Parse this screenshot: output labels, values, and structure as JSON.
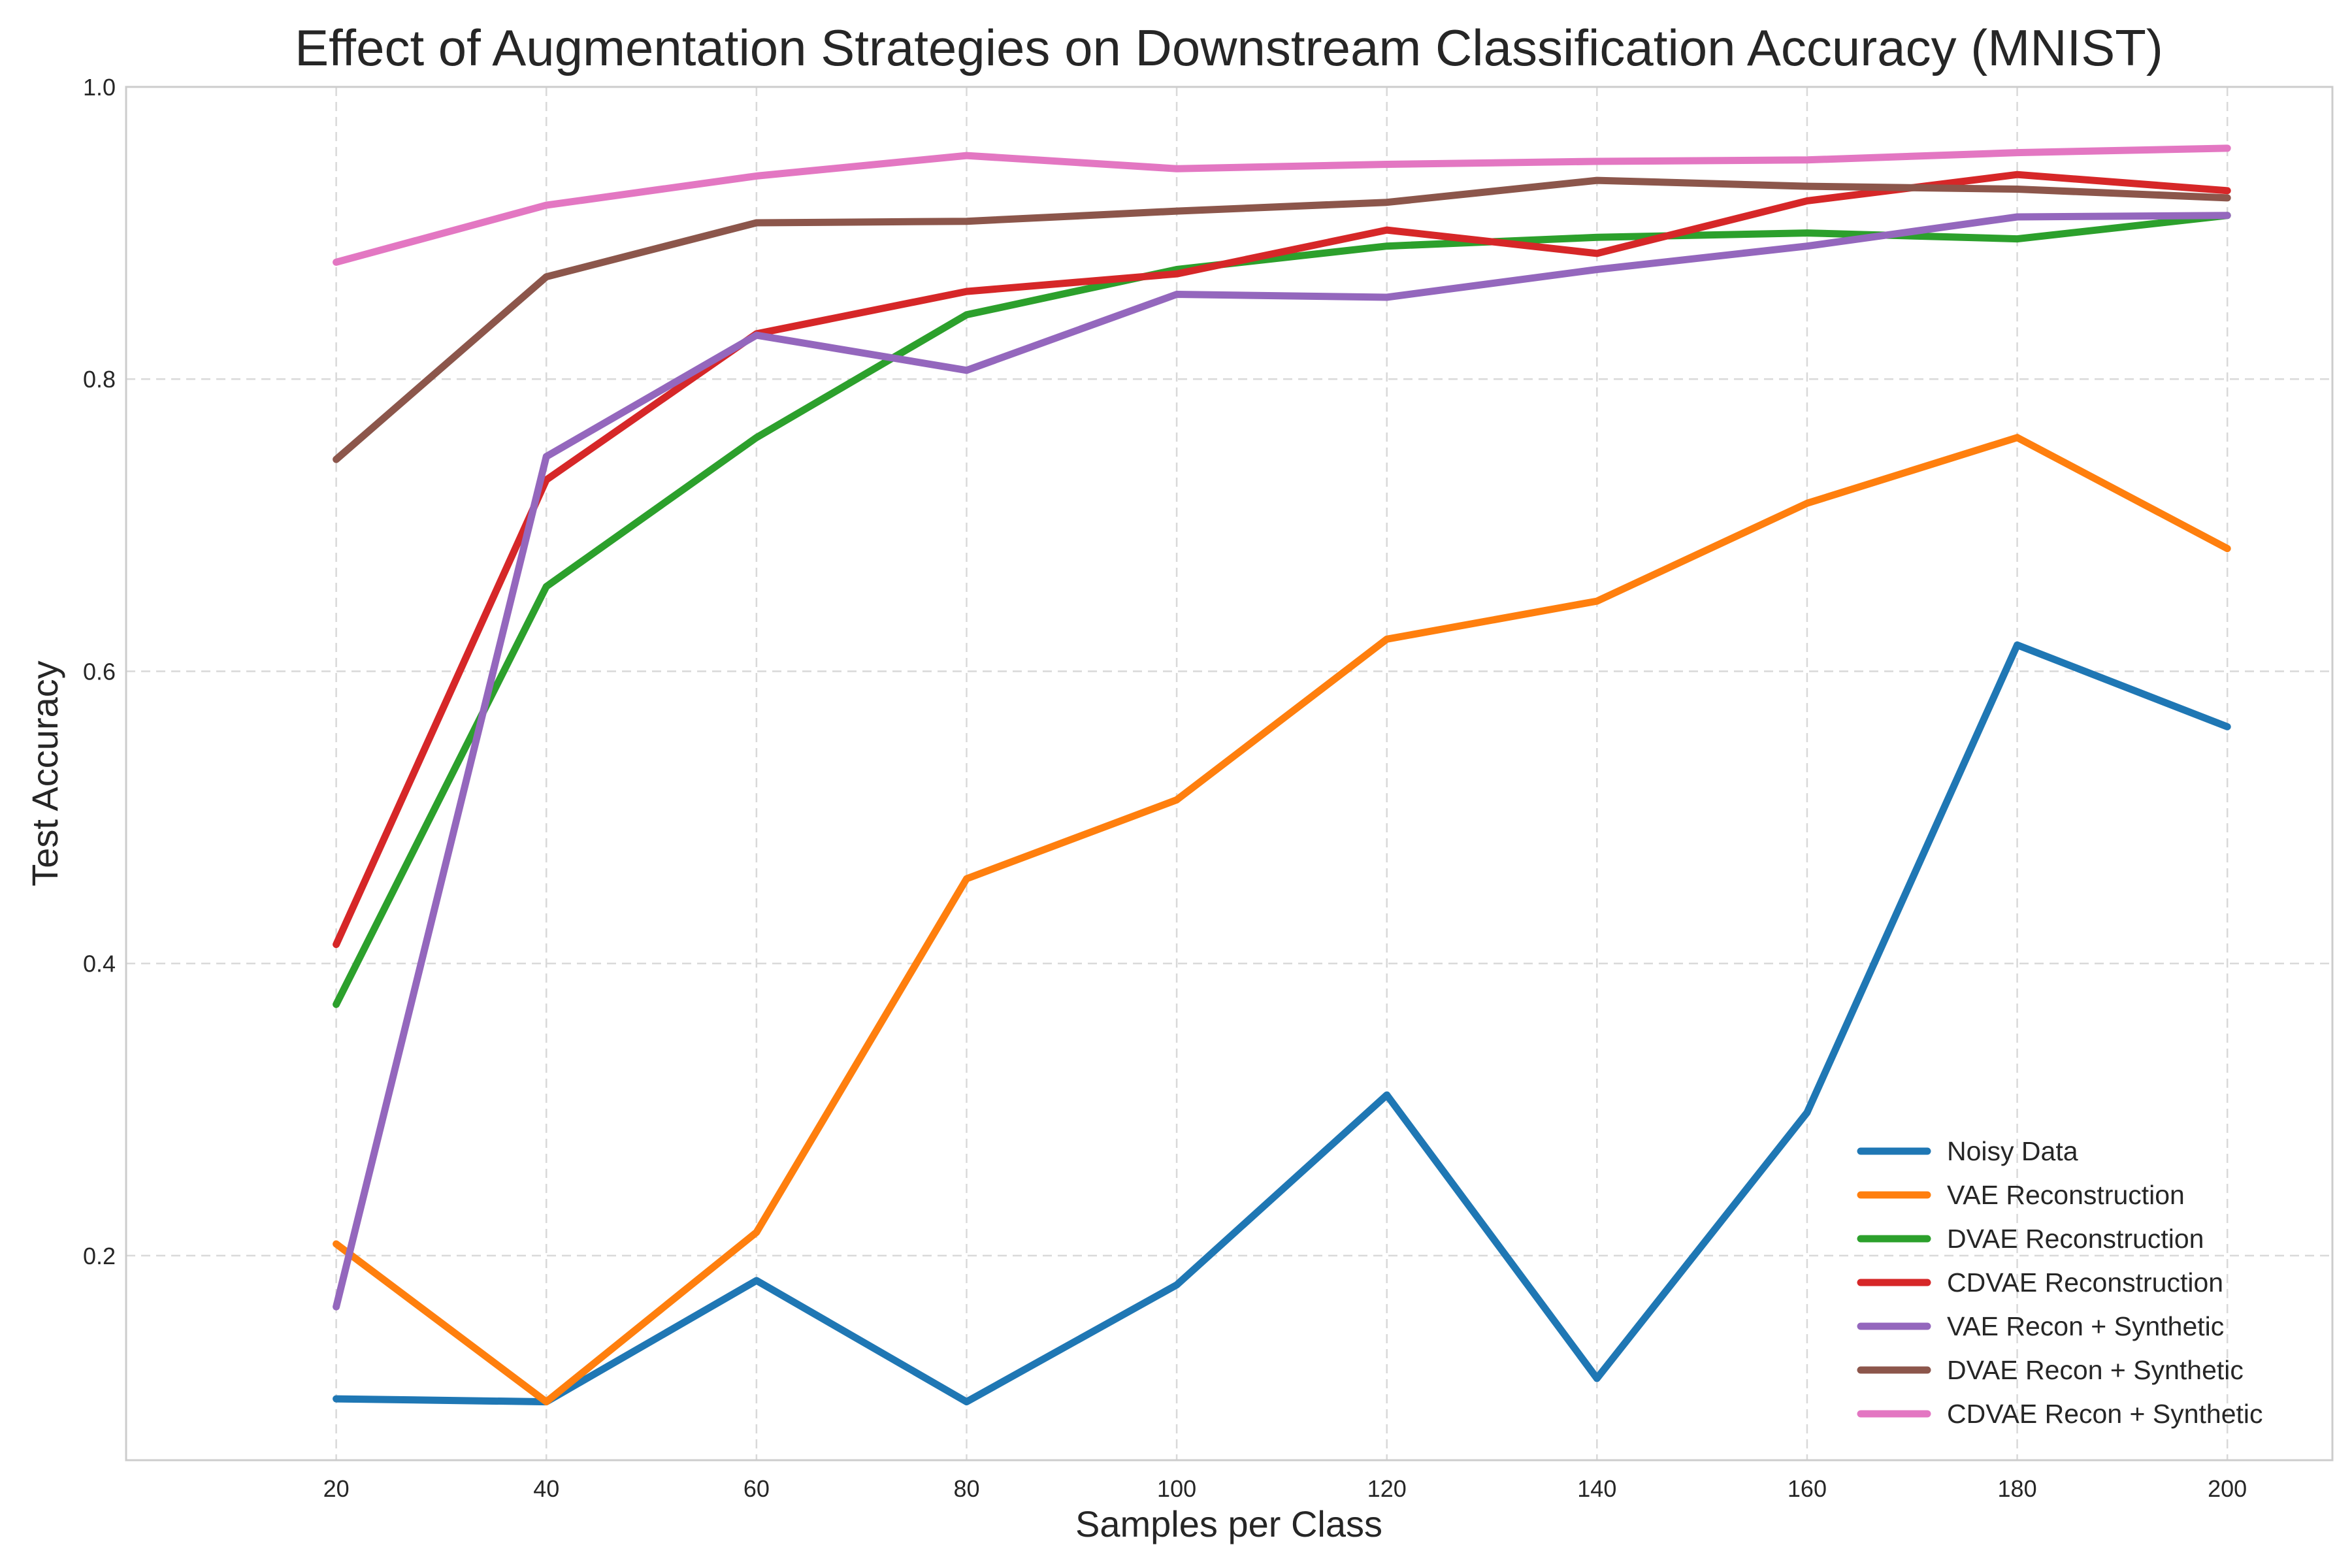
{
  "chart_data": {
    "type": "line",
    "title": "Effect of Augmentation Strategies on Downstream Classification Accuracy (MNIST)",
    "xlabel": "Samples per Class",
    "ylabel": "Test Accuracy",
    "x": [
      20,
      40,
      60,
      80,
      100,
      120,
      140,
      160,
      180,
      200
    ],
    "xlim": [
      0,
      210
    ],
    "ylim": [
      0.06,
      1.0
    ],
    "xticks": [
      "20",
      "40",
      "60",
      "80",
      "100",
      "120",
      "140",
      "160",
      "180",
      "200"
    ],
    "yticks": [
      "0.2",
      "0.4",
      "0.6",
      "0.8",
      "1.0"
    ],
    "grid": true,
    "legend_position": "lower-right",
    "series": [
      {
        "name": "Noisy Data",
        "color": "#1f77b4",
        "values": [
          0.102,
          0.1,
          0.183,
          0.1,
          0.18,
          0.31,
          0.116,
          0.298,
          0.618,
          0.562
        ]
      },
      {
        "name": "VAE Reconstruction",
        "color": "#ff7f0e",
        "values": [
          0.208,
          0.1,
          0.216,
          0.458,
          0.512,
          0.622,
          0.648,
          0.715,
          0.76,
          0.684
        ]
      },
      {
        "name": "DVAE Reconstruction",
        "color": "#2ca02c",
        "values": [
          0.372,
          0.658,
          0.76,
          0.844,
          0.875,
          0.891,
          0.897,
          0.9,
          0.896,
          0.912
        ]
      },
      {
        "name": "CDVAE Reconstruction",
        "color": "#d62728",
        "values": [
          0.413,
          0.731,
          0.831,
          0.86,
          0.872,
          0.902,
          0.886,
          0.922,
          0.94,
          0.929
        ]
      },
      {
        "name": "VAE Recon + Synthetic",
        "color": "#9467bd",
        "values": [
          0.165,
          0.747,
          0.83,
          0.806,
          0.858,
          0.856,
          0.875,
          0.891,
          0.911,
          0.912
        ]
      },
      {
        "name": "DVAE Recon + Synthetic",
        "color": "#8c564b",
        "values": [
          0.745,
          0.87,
          0.907,
          0.908,
          0.915,
          0.921,
          0.936,
          0.932,
          0.93,
          0.924
        ]
      },
      {
        "name": "CDVAE Recon + Synthetic",
        "color": "#e377c2",
        "values": [
          0.88,
          0.919,
          0.939,
          0.953,
          0.944,
          0.947,
          0.949,
          0.95,
          0.955,
          0.958
        ]
      }
    ]
  }
}
